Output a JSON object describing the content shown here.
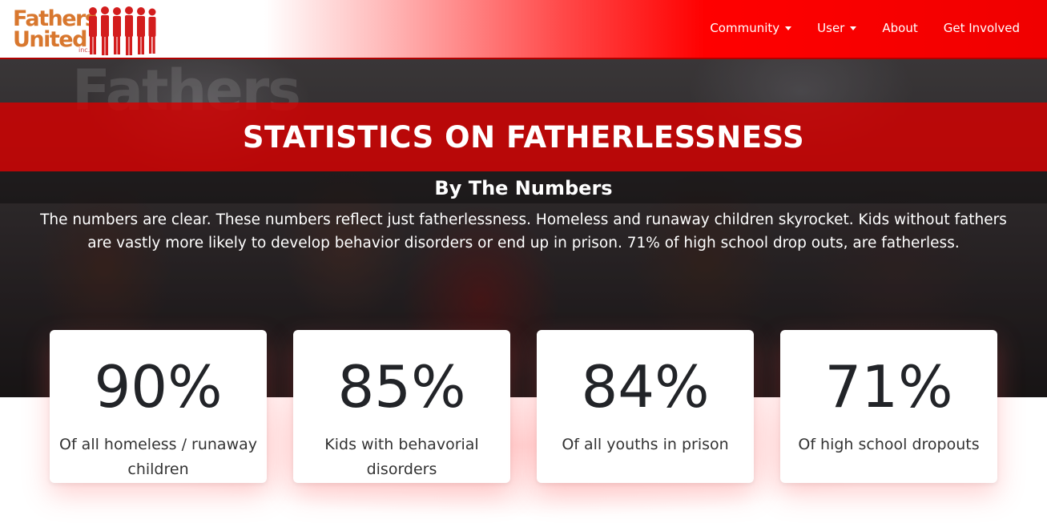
{
  "logo": {
    "line1": "Fathers",
    "line2": "United",
    "suffix": "inc."
  },
  "nav": {
    "items": [
      {
        "label": "Community",
        "dropdown": true
      },
      {
        "label": "User",
        "dropdown": true
      },
      {
        "label": "About",
        "dropdown": false
      },
      {
        "label": "Get Involved",
        "dropdown": false
      }
    ]
  },
  "hero": {
    "title": "STATISTICS ON FATHERLESSNESS",
    "subtitle": "By The Numbers",
    "description": "The numbers are clear. These numbers reflect just fatherlessness. Homeless and runaway children skyrocket. Kids without fathers are vastly more likely to develop behavior disorders or end up in prison. 71% of high school drop outs, are fatherless.",
    "background_text": "Fathers"
  },
  "stats": [
    {
      "value": "90%",
      "label": "Of all homeless / runaway children"
    },
    {
      "value": "85%",
      "label": "Kids with behavorial disorders"
    },
    {
      "value": "84%",
      "label": "Of all youths in prison"
    },
    {
      "value": "71%",
      "label": "Of high school dropouts"
    }
  ],
  "colors": {
    "brand_red": "#ff0000",
    "logo_orange": "#d8772e",
    "title_band": "#d70000",
    "card_text": "#222428"
  }
}
